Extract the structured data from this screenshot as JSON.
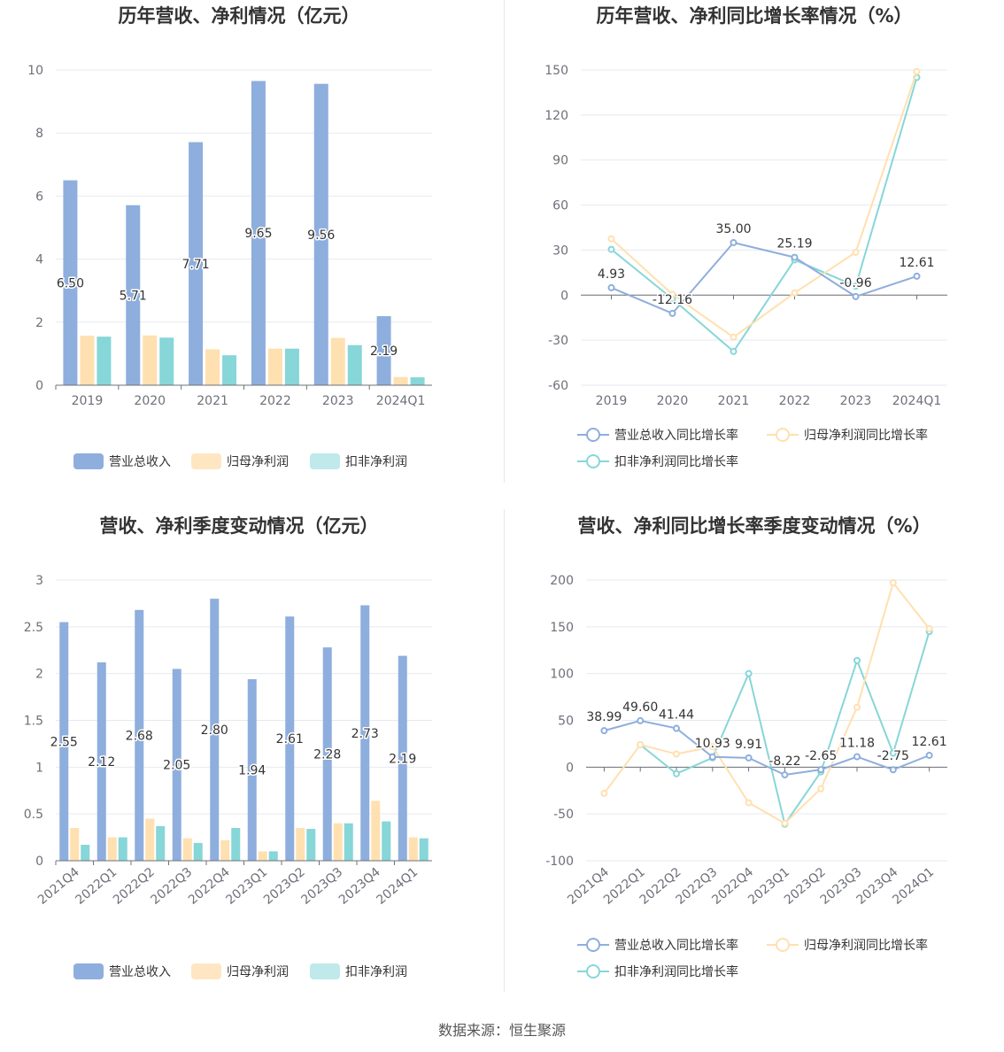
{
  "source": "数据来源：恒生聚源",
  "colors": {
    "revenue": "#8eaedd",
    "net_profit": "#ffe0b0",
    "deducted_profit": "#87d6d8"
  },
  "chart_data": [
    {
      "type": "bar",
      "title": "历年营收、净利情况（亿元）",
      "categories": [
        "2019",
        "2020",
        "2021",
        "2022",
        "2023",
        "2024Q1"
      ],
      "ylim": [
        0,
        10
      ],
      "yticks": [
        "0",
        "2",
        "4",
        "6",
        "8",
        "10"
      ],
      "series": [
        {
          "name": "营业总收入",
          "values": [
            6.5,
            5.71,
            7.71,
            9.65,
            9.56,
            2.19
          ],
          "labels": [
            "6.50",
            "5.71",
            "7.71",
            "9.65",
            "9.56",
            "2.19"
          ]
        },
        {
          "name": "归母净利润",
          "values": [
            1.57,
            1.58,
            1.14,
            1.16,
            1.5,
            0.26
          ]
        },
        {
          "name": "扣非净利润",
          "values": [
            1.54,
            1.51,
            0.95,
            1.16,
            1.27,
            0.25
          ]
        }
      ]
    },
    {
      "type": "line",
      "title": "历年营收、净利同比增长率情况（%）",
      "categories": [
        "2019",
        "2020",
        "2021",
        "2022",
        "2023",
        "2024Q1"
      ],
      "ylim": [
        -60,
        150
      ],
      "yticks": [
        "-60",
        "-30",
        "0",
        "30",
        "60",
        "90",
        "120",
        "150"
      ],
      "series": [
        {
          "name": "营业总收入同比增长率",
          "values": [
            4.93,
            -12.16,
            35.0,
            25.19,
            -0.96,
            12.61
          ],
          "labels": [
            "4.93",
            "-12.16",
            "35.00",
            "25.19",
            "-0.96",
            "12.61"
          ]
        },
        {
          "name": "归母净利润同比增长率",
          "values": [
            37.5,
            0.5,
            -28.0,
            1.5,
            28.5,
            149.0
          ]
        },
        {
          "name": "扣非净利润同比增长率",
          "values": [
            30.5,
            -2.5,
            -37.5,
            23.5,
            6.0,
            145.0
          ]
        }
      ]
    },
    {
      "type": "bar",
      "title": "营收、净利季度变动情况（亿元）",
      "categories": [
        "2021Q4",
        "2022Q1",
        "2022Q2",
        "2022Q3",
        "2022Q4",
        "2023Q1",
        "2023Q2",
        "2023Q3",
        "2023Q4",
        "2024Q1"
      ],
      "ylim": [
        0,
        3
      ],
      "yticks": [
        "0",
        "0.5",
        "1",
        "1.5",
        "2",
        "2.5",
        "3"
      ],
      "series": [
        {
          "name": "营业总收入",
          "values": [
            2.55,
            2.12,
            2.68,
            2.05,
            2.8,
            1.94,
            2.61,
            2.28,
            2.73,
            2.19
          ],
          "labels": [
            "2.55",
            "2.12",
            "2.68",
            "2.05",
            "2.80",
            "1.94",
            "2.61",
            "2.28",
            "2.73",
            "2.19"
          ]
        },
        {
          "name": "归母净利润",
          "values": [
            0.35,
            0.25,
            0.45,
            0.24,
            0.22,
            0.1,
            0.35,
            0.4,
            0.64,
            0.25
          ]
        },
        {
          "name": "扣非净利润",
          "values": [
            0.17,
            0.25,
            0.37,
            0.19,
            0.35,
            0.1,
            0.34,
            0.4,
            0.42,
            0.24
          ]
        }
      ]
    },
    {
      "type": "line",
      "title": "营收、净利同比增长率季度变动情况（%）",
      "categories": [
        "2021Q4",
        "2022Q1",
        "2022Q2",
        "2022Q3",
        "2022Q4",
        "2023Q1",
        "2023Q2",
        "2023Q3",
        "2023Q4",
        "2024Q1"
      ],
      "ylim": [
        -100,
        200
      ],
      "yticks": [
        "-100",
        "-50",
        "0",
        "50",
        "100",
        "150",
        "200"
      ],
      "series": [
        {
          "name": "营业总收入同比增长率",
          "values": [
            38.99,
            49.6,
            41.44,
            10.93,
            9.91,
            -8.22,
            -2.65,
            11.18,
            -2.75,
            12.61
          ],
          "labels": [
            "38.99",
            "49.60",
            "41.44",
            "10.93",
            "9.91",
            "-8.22",
            "-2.65",
            "11.18",
            "-2.75",
            "12.61"
          ]
        },
        {
          "name": "归母净利润同比增长率",
          "values": [
            -28.0,
            24.0,
            14.0,
            22.0,
            -38.0,
            -60.0,
            -23.0,
            64.0,
            197.0,
            148.0
          ]
        },
        {
          "name": "扣非净利润同比增长率",
          "values": [
            null,
            24.0,
            -7.0,
            10.0,
            100.0,
            -61.0,
            -5.0,
            114.0,
            15.0,
            145.0
          ]
        }
      ]
    }
  ]
}
